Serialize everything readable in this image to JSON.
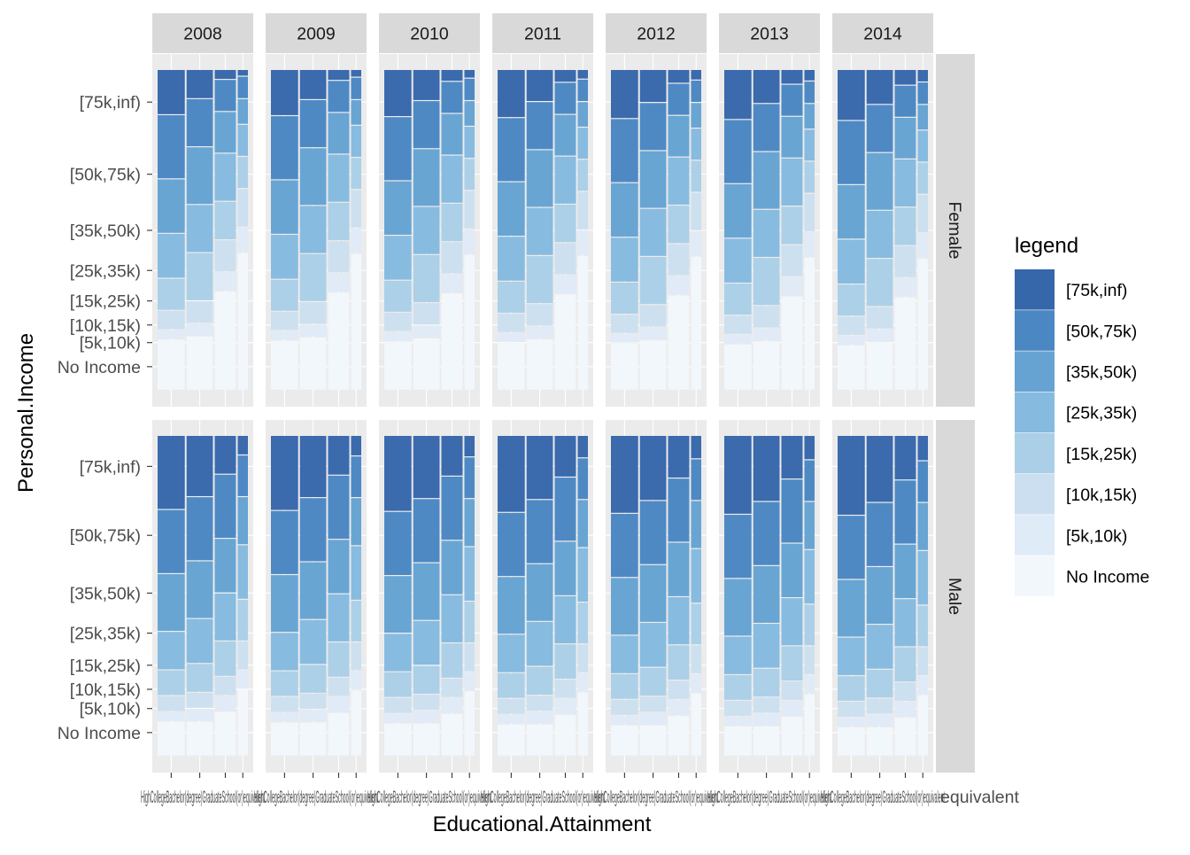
{
  "chart_data": {
    "type": "mosaic",
    "title": "",
    "xlabel": "Educational.Attainment",
    "ylabel": "Personal.Income",
    "legend_title": "legend",
    "legend_position": "right",
    "grid": true,
    "facet_columns": [
      "2008",
      "2009",
      "2010",
      "2011",
      "2012",
      "2013",
      "2014"
    ],
    "facet_rows": [
      "Female",
      "Male"
    ],
    "income_levels": [
      "No Income",
      "[5k,10k)",
      "[10k,15k)",
      "[15k,25k)",
      "[25k,35k)",
      "[35k,50k)",
      "[50k,75k)",
      "[75k,inf)"
    ],
    "legend_entries": [
      "[75k,inf)",
      "[50k,75k)",
      "[35k,50k)",
      "[25k,35k)",
      "[15k,25k)",
      "[10k,15k)",
      "[5k,10k)",
      "No Income"
    ],
    "fill_colors": {
      "[75k,inf)": "#3767ab",
      "[50k,75k)": "#4a87c3",
      "[35k,50k)": "#66a3d2",
      "[25k,35k)": "#86badf",
      "[15k,25k)": "#aacfe7",
      "[10k,15k)": "#ccdff0",
      "[5k,10k)": "#dfebf7",
      "No Income": "#f2f7fc"
    },
    "x_tick_labels_overlapping": "HighCollegeBachelor(degree)GraduateSchool(or)equivalent",
    "x_tick_label_visible_tail": "equivalent",
    "education_level_widths": [
      0.32,
      0.31,
      0.25,
      0.12
    ],
    "y_tick_positions": {
      "Female": {
        "No Income": 0.075,
        "[5k,10k)": 0.15,
        "[10k,15k)": 0.205,
        "[15k,25k)": 0.28,
        "[25k,35k)": 0.375,
        "[35k,50k)": 0.5,
        "[50k,75k)": 0.675,
        "[75k,inf)": 0.9
      },
      "Male": {
        "No Income": 0.075,
        "[5k,10k)": 0.15,
        "[10k,15k)": 0.21,
        "[15k,25k)": 0.285,
        "[25k,35k)": 0.385,
        "[35k,50k)": 0.51,
        "[50k,75k)": 0.69,
        "[75k,inf)": 0.905
      }
    },
    "proportions": {
      "Female": [
        [
          0.15,
          0.03,
          0.06,
          0.1,
          0.14,
          0.17,
          0.2,
          0.15
        ],
        [
          0.16,
          0.04,
          0.07,
          0.15,
          0.15,
          0.18,
          0.15,
          0.1
        ],
        [
          0.3,
          0.06,
          0.1,
          0.12,
          0.15,
          0.13,
          0.1,
          0.04
        ],
        [
          0.42,
          0.08,
          0.12,
          0.1,
          0.1,
          0.08,
          0.07,
          0.03
        ]
      ],
      "Male": [
        [
          0.1,
          0.03,
          0.05,
          0.08,
          0.12,
          0.18,
          0.2,
          0.24
        ],
        [
          0.1,
          0.04,
          0.05,
          0.09,
          0.14,
          0.18,
          0.2,
          0.2
        ],
        [
          0.13,
          0.05,
          0.06,
          0.11,
          0.15,
          0.17,
          0.2,
          0.13
        ],
        [
          0.2,
          0.06,
          0.09,
          0.13,
          0.17,
          0.15,
          0.13,
          0.07
        ]
      ]
    }
  }
}
